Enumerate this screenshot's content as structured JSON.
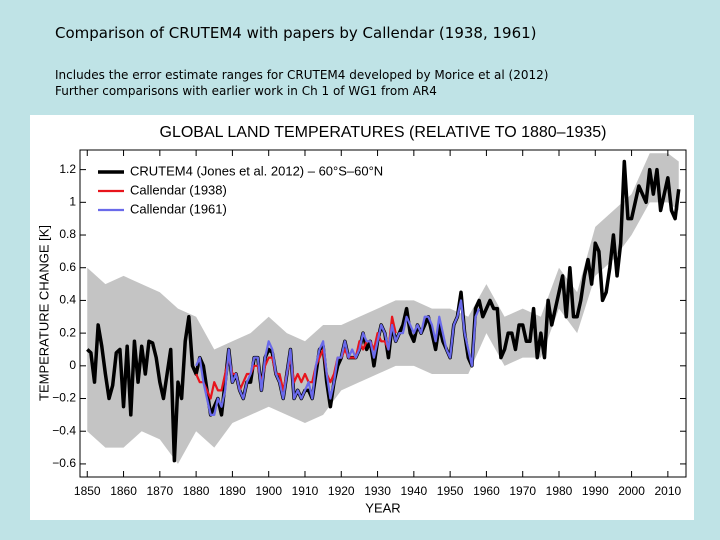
{
  "slide": {
    "title": "Comparison of CRUTEM4 with papers by Callendar (1938, 1961)",
    "notes": [
      "Includes the error estimate ranges for CRUTEM4 developed by Morice et al (2012)",
      "Further comparisons with earlier work in Ch 1 of WG1 from AR4"
    ]
  },
  "chart_data": {
    "type": "line",
    "title": "GLOBAL LAND TEMPERATURES (RELATIVE TO 1880–1935)",
    "x_label": "YEAR",
    "y_label": "TEMPERATURE CHANGE [K]",
    "xlim": [
      1848,
      2015
    ],
    "ylim": [
      -0.68,
      1.32
    ],
    "xticks": [
      1850,
      1860,
      1870,
      1880,
      1890,
      1900,
      1910,
      1920,
      1930,
      1940,
      1950,
      1960,
      1970,
      1980,
      1990,
      2000,
      2010
    ],
    "yticks": [
      {
        "value": -0.6,
        "label": "−0.6"
      },
      {
        "value": -0.4,
        "label": "−0.4"
      },
      {
        "value": -0.2,
        "label": "−0.2"
      },
      0,
      0.2,
      0.4,
      0.6,
      0.8,
      1,
      1.2
    ],
    "grid": false,
    "legend": "upper left",
    "x": [
      1850,
      1851,
      1852,
      1853,
      1854,
      1855,
      1856,
      1857,
      1858,
      1859,
      1860,
      1861,
      1862,
      1863,
      1864,
      1865,
      1866,
      1867,
      1868,
      1869,
      1870,
      1871,
      1872,
      1873,
      1874,
      1875,
      1876,
      1877,
      1878,
      1879,
      1880,
      1881,
      1882,
      1883,
      1884,
      1885,
      1886,
      1887,
      1888,
      1889,
      1890,
      1891,
      1892,
      1893,
      1894,
      1895,
      1896,
      1897,
      1898,
      1899,
      1900,
      1901,
      1902,
      1903,
      1904,
      1905,
      1906,
      1907,
      1908,
      1909,
      1910,
      1911,
      1912,
      1913,
      1914,
      1915,
      1916,
      1917,
      1918,
      1919,
      1920,
      1921,
      1922,
      1923,
      1924,
      1925,
      1926,
      1927,
      1928,
      1929,
      1930,
      1931,
      1932,
      1933,
      1934,
      1935,
      1936,
      1937,
      1938,
      1939,
      1940,
      1941,
      1942,
      1943,
      1944,
      1945,
      1946,
      1947,
      1948,
      1949,
      1950,
      1951,
      1952,
      1953,
      1954,
      1955,
      1956,
      1957,
      1958,
      1959,
      1960,
      1961,
      1962,
      1963,
      1964,
      1965,
      1966,
      1967,
      1968,
      1969,
      1970,
      1971,
      1972,
      1973,
      1974,
      1975,
      1976,
      1977,
      1978,
      1979,
      1980,
      1981,
      1982,
      1983,
      1984,
      1985,
      1986,
      1987,
      1988,
      1989,
      1990,
      1991,
      1992,
      1993,
      1994,
      1995,
      1996,
      1997,
      1998,
      1999,
      2000,
      2001,
      2002,
      2003,
      2004,
      2005,
      2006,
      2007,
      2008,
      2009,
      2010,
      2011,
      2012,
      2013
    ],
    "band": {
      "color": "#c4c4c4",
      "x": [
        1850,
        1855,
        1860,
        1865,
        1870,
        1875,
        1880,
        1885,
        1890,
        1895,
        1900,
        1905,
        1910,
        1915,
        1920,
        1925,
        1930,
        1935,
        1940,
        1945,
        1950,
        1955,
        1960,
        1965,
        1970,
        1975,
        1980,
        1985,
        1990,
        1995,
        2000,
        2005,
        2010,
        2013
      ],
      "lower": [
        -0.4,
        -0.5,
        -0.5,
        -0.4,
        -0.45,
        -0.6,
        -0.4,
        -0.5,
        -0.35,
        -0.3,
        -0.25,
        -0.3,
        -0.35,
        -0.3,
        -0.15,
        -0.1,
        -0.05,
        0.0,
        0.0,
        -0.05,
        -0.05,
        -0.05,
        0.2,
        0.0,
        0.05,
        0.05,
        0.35,
        0.2,
        0.55,
        0.65,
        0.8,
        1.0,
        1.0,
        0.95
      ],
      "upper": [
        0.6,
        0.5,
        0.55,
        0.5,
        0.45,
        0.35,
        0.3,
        0.1,
        0.15,
        0.2,
        0.3,
        0.2,
        0.15,
        0.25,
        0.25,
        0.3,
        0.35,
        0.4,
        0.4,
        0.35,
        0.35,
        0.3,
        0.5,
        0.3,
        0.35,
        0.3,
        0.6,
        0.45,
        0.85,
        0.95,
        1.05,
        1.3,
        1.3,
        1.25
      ]
    },
    "series": [
      {
        "name": "CRUTEM4 (Jones et al. 2012) – 60°S–60°N",
        "color": "#000000",
        "width": 3.5,
        "values": [
          0.1,
          0.08,
          -0.1,
          0.25,
          0.12,
          -0.05,
          -0.2,
          -0.12,
          0.08,
          0.1,
          -0.25,
          0.12,
          -0.3,
          0.15,
          -0.1,
          0.12,
          -0.05,
          0.15,
          0.14,
          0.05,
          -0.1,
          -0.2,
          -0.05,
          0.1,
          -0.58,
          -0.1,
          -0.2,
          0.15,
          0.3,
          0.0,
          -0.05,
          0.05,
          0.0,
          -0.15,
          -0.3,
          -0.25,
          -0.2,
          -0.3,
          -0.1,
          0.1,
          -0.1,
          -0.05,
          -0.15,
          -0.2,
          -0.1,
          -0.1,
          0.05,
          0.05,
          -0.15,
          0.05,
          0.1,
          0.08,
          -0.05,
          -0.1,
          -0.2,
          -0.05,
          0.1,
          -0.2,
          -0.15,
          -0.2,
          -0.15,
          -0.15,
          -0.2,
          -0.05,
          0.1,
          0.12,
          -0.1,
          -0.25,
          -0.1,
          0.0,
          0.05,
          0.15,
          0.05,
          0.05,
          0.05,
          0.1,
          0.2,
          0.1,
          0.15,
          0.0,
          0.15,
          0.25,
          0.2,
          0.05,
          0.25,
          0.15,
          0.2,
          0.25,
          0.35,
          0.2,
          0.15,
          0.25,
          0.2,
          0.25,
          0.3,
          0.2,
          0.1,
          0.25,
          0.15,
          0.1,
          0.05,
          0.25,
          0.3,
          0.45,
          0.2,
          0.05,
          0.0,
          0.35,
          0.4,
          0.3,
          0.35,
          0.4,
          0.35,
          0.35,
          0.05,
          0.1,
          0.2,
          0.2,
          0.1,
          0.25,
          0.25,
          0.15,
          0.15,
          0.35,
          0.05,
          0.2,
          0.05,
          0.4,
          0.25,
          0.35,
          0.45,
          0.55,
          0.3,
          0.6,
          0.3,
          0.3,
          0.4,
          0.55,
          0.65,
          0.5,
          0.75,
          0.7,
          0.4,
          0.45,
          0.6,
          0.8,
          0.55,
          0.75,
          1.25,
          0.9,
          0.9,
          1.0,
          1.1,
          1.05,
          1.0,
          1.2,
          1.05,
          1.2,
          0.95,
          1.05,
          1.15,
          0.95,
          0.9,
          1.08
        ]
      },
      {
        "name": "Callendar (1938)",
        "color": "#e8141c",
        "width": 2.2,
        "values": [
          null,
          null,
          null,
          null,
          null,
          null,
          null,
          null,
          null,
          null,
          null,
          null,
          null,
          null,
          null,
          null,
          null,
          null,
          null,
          null,
          null,
          null,
          null,
          null,
          null,
          null,
          null,
          null,
          null,
          null,
          -0.05,
          -0.1,
          -0.1,
          -0.15,
          -0.2,
          -0.1,
          -0.15,
          -0.15,
          -0.05,
          0.05,
          -0.05,
          -0.05,
          -0.15,
          -0.1,
          -0.05,
          -0.05,
          0.0,
          0.0,
          -0.1,
          0.0,
          0.05,
          0.05,
          -0.05,
          -0.05,
          -0.15,
          -0.05,
          0.05,
          -0.1,
          -0.05,
          -0.1,
          -0.05,
          -0.1,
          -0.1,
          0.0,
          0.05,
          0.1,
          -0.05,
          -0.1,
          -0.05,
          0.05,
          0.05,
          0.1,
          0.05,
          0.05,
          0.05,
          0.15,
          0.1,
          0.15,
          0.15,
          0.1,
          0.2,
          0.15,
          0.15,
          0.1,
          0.3,
          0.2,
          null,
          null,
          null,
          null,
          null,
          null,
          null,
          null,
          null,
          null,
          null,
          null,
          null,
          null,
          null,
          null,
          null,
          null,
          null,
          null,
          null,
          null,
          null,
          null,
          null,
          null,
          null,
          null,
          null,
          null,
          null,
          null,
          null,
          null,
          null,
          null,
          null,
          null,
          null,
          null,
          null,
          null,
          null,
          null,
          null,
          null,
          null,
          null,
          null,
          null,
          null,
          null,
          null,
          null,
          null,
          null,
          null,
          null,
          null,
          null,
          null,
          null,
          null,
          null,
          null,
          null,
          null,
          null,
          null,
          null,
          null,
          null,
          null,
          null,
          null,
          null,
          null,
          null
        ]
      },
      {
        "name": "Callendar (1961)",
        "color": "#6a6aea",
        "width": 2.2,
        "values": [
          null,
          null,
          null,
          null,
          null,
          null,
          null,
          null,
          null,
          null,
          null,
          null,
          null,
          null,
          null,
          null,
          null,
          null,
          null,
          null,
          null,
          null,
          null,
          null,
          null,
          null,
          null,
          null,
          null,
          null,
          0.0,
          0.05,
          -0.1,
          -0.2,
          -0.3,
          -0.3,
          -0.2,
          -0.25,
          -0.15,
          0.1,
          -0.1,
          -0.05,
          -0.15,
          -0.2,
          -0.1,
          -0.05,
          0.05,
          0.05,
          -0.15,
          0.05,
          0.15,
          0.1,
          -0.05,
          -0.1,
          -0.2,
          -0.05,
          0.1,
          -0.2,
          -0.15,
          -0.2,
          -0.15,
          -0.1,
          -0.2,
          0.0,
          0.1,
          0.15,
          -0.05,
          -0.2,
          -0.1,
          0.05,
          0.05,
          0.15,
          0.05,
          0.1,
          0.05,
          0.1,
          0.2,
          0.15,
          0.15,
          0.05,
          0.15,
          0.25,
          0.2,
          0.1,
          0.25,
          0.15,
          0.2,
          0.2,
          0.3,
          0.25,
          0.2,
          0.25,
          0.2,
          0.3,
          0.3,
          0.25,
          0.15,
          0.3,
          0.2,
          0.1,
          0.05,
          0.25,
          0.3,
          0.4,
          0.2,
          0.1,
          0.0,
          0.3,
          0.35,
          null,
          null,
          null,
          null,
          null,
          null,
          null,
          null,
          null,
          null,
          null,
          null,
          null,
          null,
          null,
          null,
          null,
          null,
          null,
          null,
          null,
          null,
          null,
          null,
          null,
          null,
          null,
          null,
          null,
          null,
          null,
          null,
          null,
          null,
          null,
          null,
          null,
          null,
          null,
          null,
          null,
          null,
          null,
          null,
          null,
          null,
          null,
          null,
          null,
          null,
          null,
          null,
          null,
          null,
          null
        ]
      }
    ]
  }
}
